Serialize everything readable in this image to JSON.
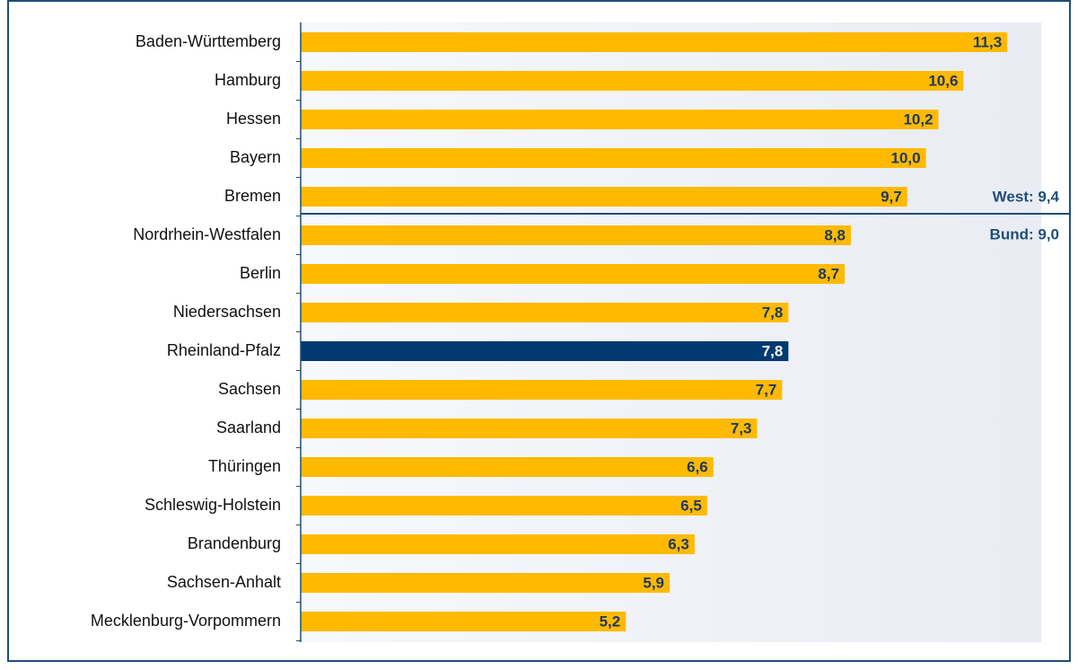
{
  "chart_data": {
    "type": "bar",
    "orientation": "horizontal",
    "categories": [
      "Baden-Württemberg",
      "Hamburg",
      "Hessen",
      "Bayern",
      "Bremen",
      "Nordrhein-Westfalen",
      "Berlin",
      "Niedersachsen",
      "Rheinland-Pfalz",
      "Sachsen",
      "Saarland",
      "Thüringen",
      "Schleswig-Holstein",
      "Brandenburg",
      "Sachsen-Anhalt",
      "Mecklenburg-Vorpommern"
    ],
    "values": [
      11.3,
      10.6,
      10.2,
      10.0,
      9.7,
      8.8,
      8.7,
      7.8,
      7.8,
      7.7,
      7.3,
      6.6,
      6.5,
      6.3,
      5.9,
      5.2
    ],
    "value_labels": [
      "11,3",
      "10,6",
      "10,2",
      "10,0",
      "9,7",
      "8,8",
      "8,7",
      "7,8",
      "7,8",
      "7,7",
      "7,3",
      "6,6",
      "6,5",
      "6,3",
      "5,9",
      "5,2"
    ],
    "color": "#ffba00",
    "highlight": {
      "category": "Rheinland-Pfalz",
      "color": "#003a70"
    },
    "xlim": [
      0,
      11.8
    ],
    "annotations": [
      "West: 9,4",
      "Bund: 9,0"
    ]
  }
}
